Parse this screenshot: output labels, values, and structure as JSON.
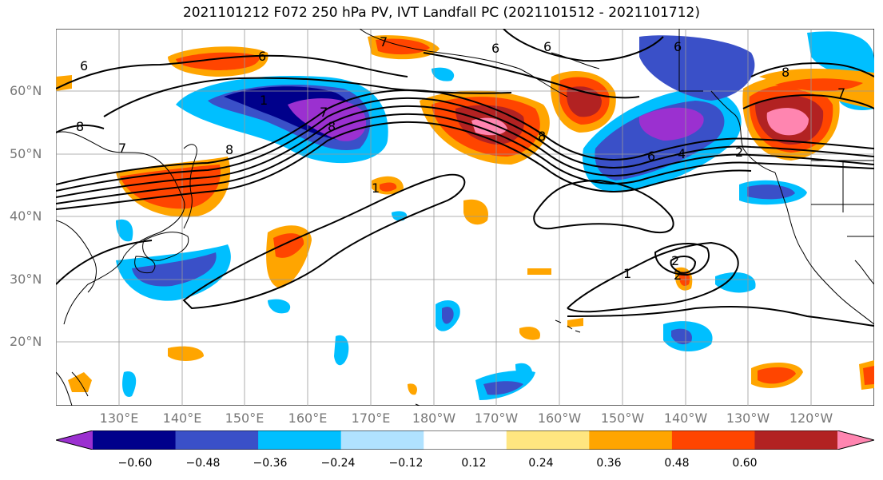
{
  "title": "2021101212 F072 250 hPa PV, IVT Landfall PC (2021101512 - 2021101712)",
  "lat_labels": [
    "60°N",
    "50°N",
    "40°N",
    "30°N",
    "20°N"
  ],
  "lon_labels": [
    "130°E",
    "140°E",
    "150°E",
    "160°E",
    "170°E",
    "180°W",
    "170°W",
    "160°W",
    "150°W",
    "140°W",
    "130°W",
    "120°W"
  ],
  "colorbar": {
    "ticks": [
      "−0.60",
      "−0.48",
      "−0.36",
      "−0.24",
      "−0.12",
      "0.12",
      "0.24",
      "0.36",
      "0.48",
      "0.60"
    ],
    "colors": [
      "#9b30d0",
      "#00008b",
      "#3a50c8",
      "#00bfff",
      "#b0e2ff",
      "#ffffff",
      "#ffe680",
      "#ffa500",
      "#ff4500",
      "#b22222",
      "#ff85b0"
    ]
  },
  "contour_labels": [
    "6",
    "6",
    "8",
    "8",
    "7",
    "8",
    "6",
    "7",
    "8",
    "6",
    "6",
    "4",
    "2",
    "7",
    "1",
    "1",
    "1",
    "2",
    "2",
    "7",
    "6",
    "8"
  ]
}
